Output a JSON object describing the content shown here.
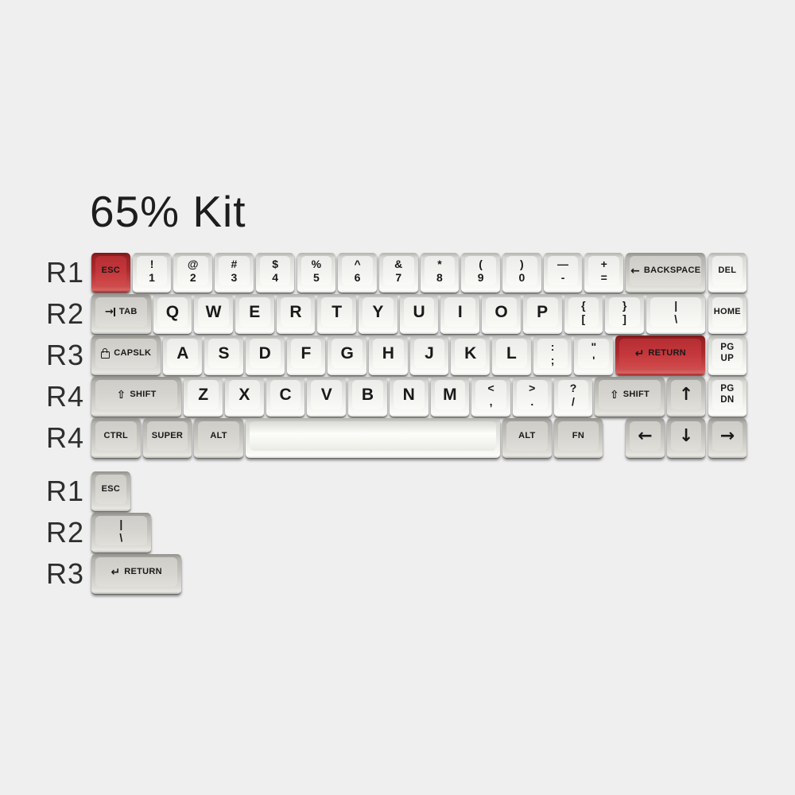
{
  "title": "65% Kit",
  "colors": {
    "background": "#efefef",
    "red_cap": "#c4383c",
    "grey_cap": "#d6d5d0",
    "white_cap": "#f3f3f0",
    "legend": "#191919"
  },
  "keyboard": {
    "rows": [
      {
        "label": "R1",
        "keys": [
          {
            "name": "esc",
            "color": "red",
            "x": 0,
            "w": 1,
            "label": "ESC"
          },
          {
            "name": "1",
            "color": "white",
            "x": 1,
            "w": 1,
            "top": "!",
            "bottom": "1"
          },
          {
            "name": "2",
            "color": "white",
            "x": 2,
            "w": 1,
            "top": "@",
            "bottom": "2"
          },
          {
            "name": "3",
            "color": "white",
            "x": 3,
            "w": 1,
            "top": "#",
            "bottom": "3"
          },
          {
            "name": "4",
            "color": "white",
            "x": 4,
            "w": 1,
            "top": "$",
            "bottom": "4"
          },
          {
            "name": "5",
            "color": "white",
            "x": 5,
            "w": 1,
            "top": "%",
            "bottom": "5"
          },
          {
            "name": "6",
            "color": "white",
            "x": 6,
            "w": 1,
            "top": "^",
            "bottom": "6"
          },
          {
            "name": "7",
            "color": "white",
            "x": 7,
            "w": 1,
            "top": "&",
            "bottom": "7"
          },
          {
            "name": "8",
            "color": "white",
            "x": 8,
            "w": 1,
            "top": "*",
            "bottom": "8"
          },
          {
            "name": "9",
            "color": "white",
            "x": 9,
            "w": 1,
            "top": "(",
            "bottom": "9"
          },
          {
            "name": "0",
            "color": "white",
            "x": 10,
            "w": 1,
            "top": ")",
            "bottom": "0"
          },
          {
            "name": "minus",
            "color": "white",
            "x": 11,
            "w": 1,
            "top": "—",
            "bottom": "-"
          },
          {
            "name": "equals",
            "color": "white",
            "x": 12,
            "w": 1,
            "top": "+",
            "bottom": "="
          },
          {
            "name": "backspace",
            "color": "grey",
            "x": 13,
            "w": 2,
            "icon": "backspace",
            "label": "BACKSPACE"
          },
          {
            "name": "del",
            "color": "white",
            "x": 15,
            "w": 1,
            "label": "DEL"
          }
        ]
      },
      {
        "label": "R2",
        "keys": [
          {
            "name": "tab",
            "color": "grey",
            "x": 0,
            "w": 1.5,
            "icon": "tab",
            "label": "TAB"
          },
          {
            "name": "q",
            "color": "white",
            "x": 1.5,
            "w": 1,
            "label": "Q",
            "big": true
          },
          {
            "name": "w",
            "color": "white",
            "x": 2.5,
            "w": 1,
            "label": "W",
            "big": true
          },
          {
            "name": "e",
            "color": "white",
            "x": 3.5,
            "w": 1,
            "label": "E",
            "big": true
          },
          {
            "name": "r",
            "color": "white",
            "x": 4.5,
            "w": 1,
            "label": "R",
            "big": true
          },
          {
            "name": "t",
            "color": "white",
            "x": 5.5,
            "w": 1,
            "label": "T",
            "big": true
          },
          {
            "name": "y",
            "color": "white",
            "x": 6.5,
            "w": 1,
            "label": "Y",
            "big": true
          },
          {
            "name": "u",
            "color": "white",
            "x": 7.5,
            "w": 1,
            "label": "U",
            "big": true
          },
          {
            "name": "i",
            "color": "white",
            "x": 8.5,
            "w": 1,
            "label": "I",
            "big": true
          },
          {
            "name": "o",
            "color": "white",
            "x": 9.5,
            "w": 1,
            "label": "O",
            "big": true
          },
          {
            "name": "p",
            "color": "white",
            "x": 10.5,
            "w": 1,
            "label": "P",
            "big": true
          },
          {
            "name": "lbracket",
            "color": "white",
            "x": 11.5,
            "w": 1,
            "top": "{",
            "bottom": "["
          },
          {
            "name": "rbracket",
            "color": "white",
            "x": 12.5,
            "w": 1,
            "top": "}",
            "bottom": "]"
          },
          {
            "name": "backslash",
            "color": "white",
            "x": 13.5,
            "w": 1.5,
            "top": "|",
            "bottom": "\\"
          },
          {
            "name": "home",
            "color": "white",
            "x": 15,
            "w": 1,
            "label": "HOME"
          }
        ]
      },
      {
        "label": "R3",
        "keys": [
          {
            "name": "capslock",
            "color": "grey",
            "x": 0,
            "w": 1.75,
            "icon": "caps",
            "label": "CAPSLK"
          },
          {
            "name": "a",
            "color": "white",
            "x": 1.75,
            "w": 1,
            "label": "A",
            "big": true
          },
          {
            "name": "s",
            "color": "white",
            "x": 2.75,
            "w": 1,
            "label": "S",
            "big": true
          },
          {
            "name": "d",
            "color": "white",
            "x": 3.75,
            "w": 1,
            "label": "D",
            "big": true
          },
          {
            "name": "f",
            "color": "white",
            "x": 4.75,
            "w": 1,
            "label": "F",
            "big": true
          },
          {
            "name": "g",
            "color": "white",
            "x": 5.75,
            "w": 1,
            "label": "G",
            "big": true
          },
          {
            "name": "h",
            "color": "white",
            "x": 6.75,
            "w": 1,
            "label": "H",
            "big": true
          },
          {
            "name": "j",
            "color": "white",
            "x": 7.75,
            "w": 1,
            "label": "J",
            "big": true
          },
          {
            "name": "k",
            "color": "white",
            "x": 8.75,
            "w": 1,
            "label": "K",
            "big": true
          },
          {
            "name": "l",
            "color": "white",
            "x": 9.75,
            "w": 1,
            "label": "L",
            "big": true
          },
          {
            "name": "semicolon",
            "color": "white",
            "x": 10.75,
            "w": 1,
            "top": ":",
            "bottom": ";"
          },
          {
            "name": "quote",
            "color": "white",
            "x": 11.75,
            "w": 1,
            "top": "\"",
            "bottom": "'"
          },
          {
            "name": "return",
            "color": "red",
            "x": 12.75,
            "w": 2.25,
            "icon": "return",
            "label": "RETURN"
          },
          {
            "name": "pgup",
            "color": "white",
            "x": 15,
            "w": 1,
            "top": "PG",
            "bottom": "UP",
            "small": true
          }
        ]
      },
      {
        "label": "R4",
        "keys": [
          {
            "name": "lshift",
            "color": "grey",
            "x": 0,
            "w": 2.25,
            "icon": "shift",
            "label": "SHIFT"
          },
          {
            "name": "z",
            "color": "white",
            "x": 2.25,
            "w": 1,
            "label": "Z",
            "big": true
          },
          {
            "name": "x",
            "color": "white",
            "x": 3.25,
            "w": 1,
            "label": "X",
            "big": true
          },
          {
            "name": "c",
            "color": "white",
            "x": 4.25,
            "w": 1,
            "label": "C",
            "big": true
          },
          {
            "name": "v",
            "color": "white",
            "x": 5.25,
            "w": 1,
            "label": "V",
            "big": true
          },
          {
            "name": "b",
            "color": "white",
            "x": 6.25,
            "w": 1,
            "label": "B",
            "big": true
          },
          {
            "name": "n",
            "color": "white",
            "x": 7.25,
            "w": 1,
            "label": "N",
            "big": true
          },
          {
            "name": "m",
            "color": "white",
            "x": 8.25,
            "w": 1,
            "label": "M",
            "big": true
          },
          {
            "name": "comma",
            "color": "white",
            "x": 9.25,
            "w": 1,
            "top": "<",
            "bottom": ","
          },
          {
            "name": "period",
            "color": "white",
            "x": 10.25,
            "w": 1,
            "top": ">",
            "bottom": "."
          },
          {
            "name": "slash",
            "color": "white",
            "x": 11.25,
            "w": 1,
            "top": "?",
            "bottom": "/"
          },
          {
            "name": "rshift",
            "color": "grey",
            "x": 12.25,
            "w": 1.75,
            "icon": "shift",
            "label": "SHIFT"
          },
          {
            "name": "arrow-up",
            "color": "grey",
            "x": 14,
            "w": 1,
            "label": "↑",
            "arrow": true
          },
          {
            "name": "pgdn",
            "color": "white",
            "x": 15,
            "w": 1,
            "top": "PG",
            "bottom": "DN",
            "small": true
          }
        ]
      },
      {
        "label": "R4",
        "keys": [
          {
            "name": "ctrl",
            "color": "grey",
            "x": 0,
            "w": 1.25,
            "label": "CTRL"
          },
          {
            "name": "super",
            "color": "grey",
            "x": 1.25,
            "w": 1.25,
            "label": "SUPER"
          },
          {
            "name": "lalt",
            "color": "grey",
            "x": 2.5,
            "w": 1.25,
            "label": "ALT"
          },
          {
            "name": "space",
            "color": "white",
            "x": 3.75,
            "w": 6.25,
            "label": "",
            "space": true
          },
          {
            "name": "ralt",
            "color": "grey",
            "x": 10,
            "w": 1.25,
            "label": "ALT"
          },
          {
            "name": "fn",
            "color": "grey",
            "x": 11.25,
            "w": 1.25,
            "label": "FN"
          },
          {
            "name": "arrow-left",
            "color": "grey",
            "x": 13,
            "w": 1,
            "label": "←",
            "arrow": true
          },
          {
            "name": "arrow-down",
            "color": "grey",
            "x": 14,
            "w": 1,
            "label": "↓",
            "arrow": true
          },
          {
            "name": "arrow-right",
            "color": "grey",
            "x": 15,
            "w": 1,
            "label": "→",
            "arrow": true
          }
        ]
      }
    ],
    "extra_rows": [
      {
        "label": "R1",
        "keys": [
          {
            "name": "esc-alt",
            "color": "grey",
            "x": 0,
            "w": 1,
            "label": "ESC"
          }
        ]
      },
      {
        "label": "R2",
        "keys": [
          {
            "name": "backslash-alt",
            "color": "grey",
            "x": 0,
            "w": 1.5,
            "top": "|",
            "bottom": "\\"
          }
        ]
      },
      {
        "label": "R3",
        "keys": [
          {
            "name": "return-alt",
            "color": "grey",
            "x": 0,
            "w": 2.25,
            "icon": "return",
            "label": "RETURN"
          }
        ]
      }
    ]
  },
  "icons": {
    "backspace": "←",
    "return": "↵",
    "shift": "⇧",
    "tab": "→|",
    "caps": "padlock"
  }
}
